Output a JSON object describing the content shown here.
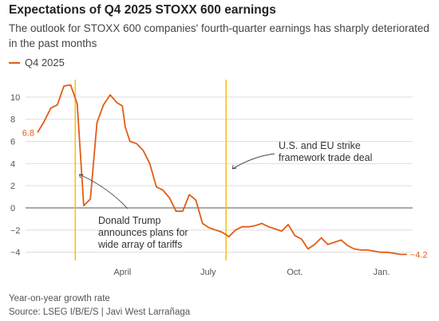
{
  "title": "Expectations of Q4 2025 STOXX 600 earnings",
  "subtitle": "The outlook for STOXX 600 companies' fourth-quarter earnings has sharply deteriorated in the past months",
  "note": "Year-on-year growth rate",
  "source": "Source: LSEG I/B/E/S | Javi West Larrañaga",
  "colors": {
    "series": "#e25c16",
    "event": "#f4c31a",
    "grid": "#dddddd",
    "zero": "#555555",
    "annotation": "#444444"
  },
  "chart_data": {
    "type": "line",
    "series": [
      {
        "name": "Q4 2025",
        "x": [
          "2025-01-01",
          "2025-01-08",
          "2025-01-15",
          "2025-01-22",
          "2025-01-29",
          "2025-02-05",
          "2025-02-12",
          "2025-02-19",
          "2025-02-26",
          "2025-03-05",
          "2025-03-12",
          "2025-03-19",
          "2025-03-26",
          "2025-04-01",
          "2025-04-04",
          "2025-04-09",
          "2025-04-16",
          "2025-04-23",
          "2025-04-30",
          "2025-05-07",
          "2025-05-14",
          "2025-05-21",
          "2025-05-28",
          "2025-06-04",
          "2025-06-11",
          "2025-06-18",
          "2025-06-25",
          "2025-07-02",
          "2025-07-09",
          "2025-07-16",
          "2025-07-23",
          "2025-07-30",
          "2025-08-06",
          "2025-08-13",
          "2025-08-20",
          "2025-08-27",
          "2025-09-03",
          "2025-09-10",
          "2025-09-17",
          "2025-09-24",
          "2025-10-01",
          "2025-10-08",
          "2025-10-15",
          "2025-10-22",
          "2025-10-29",
          "2025-11-05",
          "2025-11-12",
          "2025-11-19",
          "2025-11-26",
          "2025-12-03",
          "2025-12-10",
          "2025-12-17",
          "2025-12-24",
          "2025-12-31",
          "2026-01-07",
          "2026-01-14",
          "2026-01-21",
          "2026-01-28"
        ],
        "values": [
          6.8,
          7.8,
          9.0,
          9.3,
          11.0,
          11.1,
          9.4,
          0.2,
          0.8,
          7.7,
          9.3,
          10.2,
          9.5,
          9.2,
          7.3,
          6.0,
          5.8,
          5.2,
          4.0,
          1.9,
          1.6,
          0.9,
          -0.3,
          -0.3,
          1.2,
          0.7,
          -1.4,
          -1.8,
          -2.0,
          -2.2,
          -2.6,
          -2.0,
          -1.7,
          -1.7,
          -1.6,
          -1.4,
          -1.7,
          -1.9,
          -2.1,
          -1.5,
          -2.5,
          -2.8,
          -3.7,
          -3.3,
          -2.7,
          -3.3,
          -3.1,
          -2.9,
          -3.4,
          -3.7,
          -3.8,
          -3.8,
          -3.9,
          -4.0,
          -4.0,
          -4.1,
          -4.2,
          -4.2
        ]
      }
    ],
    "x_tick_labels": [
      "April",
      "July",
      "Oct.",
      "Jan."
    ],
    "x_tick_dates": [
      "2025-04-01",
      "2025-07-01",
      "2025-10-01",
      "2026-01-01"
    ],
    "y_ticks": [
      10,
      8,
      6,
      4,
      2,
      0,
      -2,
      -4
    ],
    "ylim": [
      -4.6,
      11.5
    ],
    "xlim": [
      "2024-12-26",
      "2026-02-03"
    ],
    "start_label": "6.8",
    "end_label": "-4.2",
    "events": [
      {
        "date": "2025-02-10",
        "label_lines": [
          "Donald Trump",
          "announces plans for",
          "wide array of tariffs"
        ]
      },
      {
        "date": "2025-07-20",
        "label_lines": [
          "U.S. and EU strike",
          "framework trade deal"
        ]
      }
    ],
    "grid": true,
    "legend": "top-left"
  }
}
